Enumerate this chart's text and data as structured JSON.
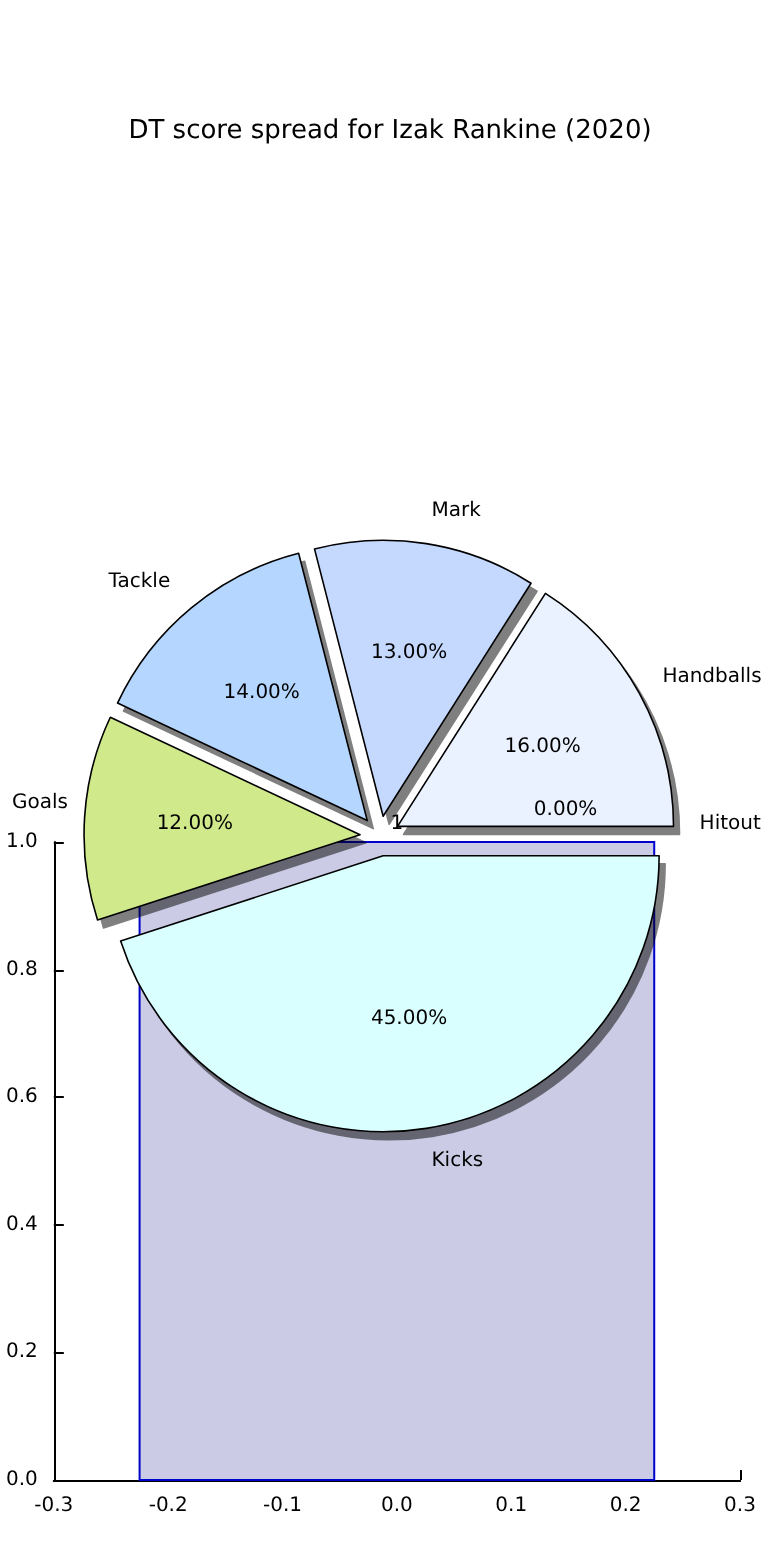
{
  "chart_data": [
    {
      "type": "pie",
      "title": "DT score spread for Izak Rankine (2020)",
      "categories": [
        "Handballs",
        "Mark",
        "Tackle",
        "Goals",
        "Kicks",
        "Hitout"
      ],
      "values": [
        16,
        13,
        14,
        12,
        45,
        0
      ],
      "colors": [
        "#eaf1ff",
        "#c5d9ff",
        "#b5d6ff",
        "#d0ea8b",
        "#d9ffff",
        "#f0f0f0"
      ],
      "value_labels": [
        "16.00%",
        "13.00%",
        "14.00%",
        "12.00%",
        "45.00%",
        "0.00%"
      ]
    },
    {
      "type": "histogram",
      "bins": [
        -0.225,
        0.225
      ],
      "values": [
        1
      ],
      "color": "#cbcbe5",
      "data_labels": true,
      "xlim": [
        -0.3,
        0.3
      ],
      "xticks": [
        -0.3,
        -0.2,
        -0.1,
        {
          "value": 0,
          "label": "0.0"
        },
        0.1,
        0.2,
        0.3
      ],
      "ylim": [
        0,
        1
      ],
      "yticks": [
        {
          "value": 0,
          "label": "0.0"
        },
        0.2,
        0.4,
        0.6,
        0.8,
        {
          "value": 1,
          "label": "1.0"
        }
      ],
      "grid": false
    }
  ]
}
